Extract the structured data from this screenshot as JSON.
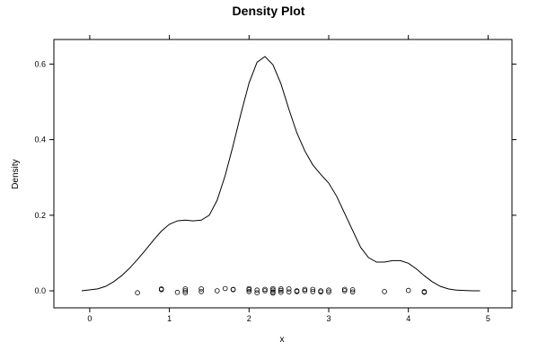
{
  "chart_data": {
    "type": "line",
    "title": "Density Plot",
    "xlabel": "x",
    "ylabel": "Density",
    "xlim": [
      -0.45,
      5.3
    ],
    "ylim": [
      -0.045,
      0.665
    ],
    "xticks": [
      0,
      1,
      2,
      3,
      4,
      5
    ],
    "xtick_labels": [
      "0",
      "1",
      "2",
      "3",
      "4",
      "5"
    ],
    "yticks": [
      0.0,
      0.2,
      0.4,
      0.6
    ],
    "ytick_labels": [
      "0.0",
      "0.2",
      "0.4",
      "0.6"
    ],
    "grid": false,
    "legend": "none",
    "series": [
      {
        "kind": "density-line",
        "color": "#000000",
        "x": [
          -0.1,
          0.1,
          0.2,
          0.3,
          0.4,
          0.5,
          0.6,
          0.7,
          0.8,
          0.9,
          1.0,
          1.1,
          1.2,
          1.3,
          1.4,
          1.5,
          1.6,
          1.7,
          1.8,
          1.9,
          2.0,
          2.1,
          2.2,
          2.3,
          2.4,
          2.5,
          2.6,
          2.7,
          2.8,
          2.9,
          3.0,
          3.1,
          3.2,
          3.3,
          3.4,
          3.5,
          3.6,
          3.7,
          3.8,
          3.9,
          4.0,
          4.1,
          4.2,
          4.3,
          4.4,
          4.5,
          4.6,
          4.7,
          4.8,
          4.9
        ],
        "y": [
          0.0,
          0.005,
          0.012,
          0.024,
          0.04,
          0.06,
          0.083,
          0.108,
          0.134,
          0.158,
          0.176,
          0.185,
          0.187,
          0.185,
          0.187,
          0.2,
          0.24,
          0.305,
          0.385,
          0.47,
          0.55,
          0.605,
          0.62,
          0.598,
          0.548,
          0.48,
          0.418,
          0.37,
          0.333,
          0.308,
          0.285,
          0.25,
          0.205,
          0.16,
          0.115,
          0.088,
          0.076,
          0.076,
          0.08,
          0.08,
          0.073,
          0.058,
          0.04,
          0.024,
          0.012,
          0.005,
          0.002,
          0.001,
          0.0,
          0.0
        ]
      },
      {
        "kind": "rug-points",
        "color": "#000000",
        "x": [
          0.6,
          0.9,
          0.9,
          1.1,
          1.2,
          1.2,
          1.2,
          1.4,
          1.4,
          1.6,
          1.7,
          1.8,
          1.8,
          2.0,
          2.0,
          2.0,
          2.1,
          2.1,
          2.2,
          2.2,
          2.3,
          2.3,
          2.3,
          2.3,
          2.4,
          2.4,
          2.4,
          2.5,
          2.5,
          2.6,
          2.6,
          2.7,
          2.7,
          2.8,
          2.8,
          2.9,
          2.9,
          3.0,
          3.0,
          3.2,
          3.2,
          3.3,
          3.3,
          3.7,
          4.0,
          4.2,
          4.2
        ],
        "y": [
          -0.005,
          0.003,
          0.005,
          -0.004,
          0.005,
          0.0,
          -0.005,
          0.005,
          -0.002,
          0.0,
          0.006,
          0.004,
          0.003,
          0.006,
          0.003,
          -0.002,
          0.002,
          -0.005,
          0.004,
          0.0,
          0.006,
          0.002,
          -0.003,
          -0.006,
          0.005,
          0.001,
          -0.004,
          0.005,
          -0.003,
          0.0,
          -0.002,
          0.004,
          0.0,
          0.004,
          -0.002,
          0.0,
          -0.003,
          0.002,
          -0.003,
          0.004,
          0.0,
          0.003,
          -0.003,
          -0.002,
          0.001,
          -0.002,
          -0.004
        ]
      }
    ]
  }
}
